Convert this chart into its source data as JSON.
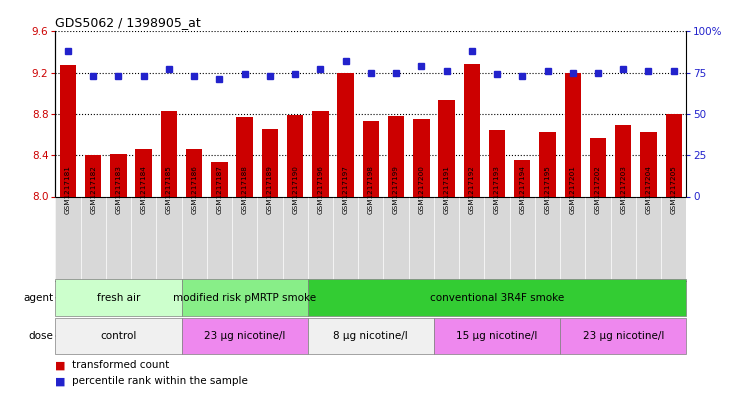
{
  "title": "GDS5062 / 1398905_at",
  "samples": [
    "GSM1217181",
    "GSM1217182",
    "GSM1217183",
    "GSM1217184",
    "GSM1217185",
    "GSM1217186",
    "GSM1217187",
    "GSM1217188",
    "GSM1217189",
    "GSM1217190",
    "GSM1217196",
    "GSM1217197",
    "GSM1217198",
    "GSM1217199",
    "GSM1217200",
    "GSM1217191",
    "GSM1217192",
    "GSM1217193",
    "GSM1217194",
    "GSM1217195",
    "GSM1217201",
    "GSM1217202",
    "GSM1217203",
    "GSM1217204",
    "GSM1217205"
  ],
  "bar_values": [
    9.27,
    8.4,
    8.41,
    8.46,
    8.83,
    8.46,
    8.33,
    8.77,
    8.65,
    8.79,
    8.83,
    9.2,
    8.73,
    8.78,
    8.75,
    8.94,
    9.28,
    8.64,
    8.35,
    8.63,
    9.2,
    8.57,
    8.69,
    8.63,
    8.8
  ],
  "dot_values": [
    88,
    73,
    73,
    73,
    77,
    73,
    71,
    74,
    73,
    74,
    77,
    82,
    75,
    75,
    79,
    76,
    88,
    74,
    73,
    76,
    75,
    75,
    77,
    76,
    76
  ],
  "ylim_left": [
    8.0,
    9.6
  ],
  "ylim_right": [
    0,
    100
  ],
  "yticks_left": [
    8.0,
    8.4,
    8.8,
    9.2,
    9.6
  ],
  "yticks_right": [
    0,
    25,
    50,
    75,
    100
  ],
  "bar_color": "#cc0000",
  "dot_color": "#2222cc",
  "agent_groups": [
    {
      "label": "fresh air",
      "start": 0,
      "end": 4,
      "color": "#ccffcc"
    },
    {
      "label": "modified risk pMRTP smoke",
      "start": 5,
      "end": 9,
      "color": "#88ee88"
    },
    {
      "label": "conventional 3R4F smoke",
      "start": 10,
      "end": 24,
      "color": "#33cc33"
    }
  ],
  "dose_groups": [
    {
      "label": "control",
      "start": 0,
      "end": 4,
      "color": "#f0f0f0"
    },
    {
      "label": "23 μg nicotine/l",
      "start": 5,
      "end": 9,
      "color": "#ee88ee"
    },
    {
      "label": "8 μg nicotine/l",
      "start": 10,
      "end": 14,
      "color": "#f0f0f0"
    },
    {
      "label": "15 μg nicotine/l",
      "start": 15,
      "end": 19,
      "color": "#ee88ee"
    },
    {
      "label": "23 μg nicotine/l",
      "start": 20,
      "end": 24,
      "color": "#ee88ee"
    }
  ],
  "legend": [
    {
      "label": "transformed count",
      "color": "#cc0000"
    },
    {
      "label": "percentile rank within the sample",
      "color": "#2222cc"
    }
  ],
  "xtick_bg": "#d8d8d8",
  "plot_facecolor": "#ffffff"
}
